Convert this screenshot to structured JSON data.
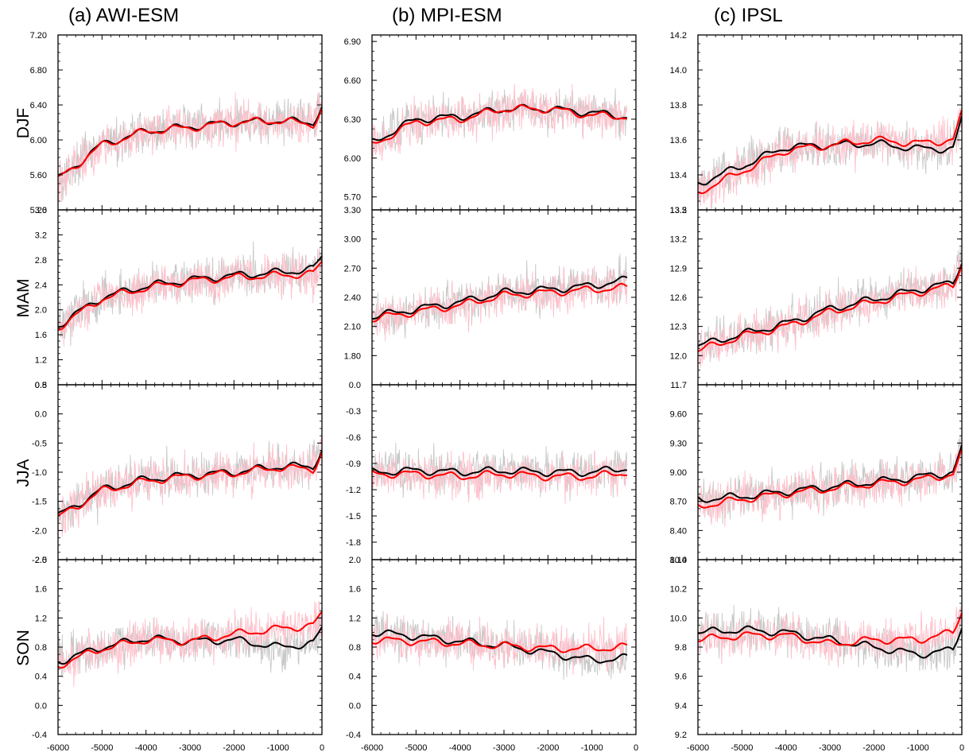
{
  "figure": {
    "column_titles": [
      "(a) AWI-ESM",
      "(b) MPI-ESM",
      "(c) IPSL"
    ],
    "row_labels": [
      "DJF",
      "MAM",
      "JJA",
      "SON"
    ],
    "colors": {
      "annual_gray": "#c8c8c8",
      "annual_pink": "#ffc0cb",
      "smoothed_black": "#000000",
      "smoothed_red": "#ff0000"
    }
  },
  "chart_data": [
    {
      "type": "line",
      "column": "(a) AWI-ESM",
      "row": "DJF",
      "xlim": [
        -6000,
        0
      ],
      "ylim": [
        5.2,
        7.2
      ],
      "y_ticks": [
        "5.20",
        "5.60",
        "6.00",
        "6.40",
        "6.80",
        "7.20"
      ],
      "x_ticks": [],
      "x": [
        -6000,
        -5000,
        -4000,
        -3000,
        -2000,
        -1000,
        -200,
        0
      ],
      "series": [
        {
          "values": [
            5.55,
            5.95,
            6.1,
            6.15,
            6.2,
            6.22,
            6.2,
            6.38
          ]
        },
        {
          "values": [
            5.55,
            5.94,
            6.1,
            6.14,
            6.2,
            6.22,
            6.18,
            6.35
          ]
        }
      ]
    },
    {
      "type": "line",
      "column": "(b) MPI-ESM",
      "row": "DJF",
      "xlim": [
        -6000,
        0
      ],
      "ylim": [
        5.6,
        6.95
      ],
      "y_ticks": [
        "5.70",
        "6.00",
        "6.30",
        "6.60",
        "6.90"
      ],
      "x_ticks": [],
      "x": [
        -6000,
        -5000,
        -4000,
        -3000,
        -2000,
        -1000,
        -200
      ],
      "series": [
        {
          "values": [
            6.12,
            6.3,
            6.32,
            6.38,
            6.38,
            6.35,
            6.32
          ]
        },
        {
          "values": [
            6.1,
            6.28,
            6.3,
            6.38,
            6.38,
            6.33,
            6.32
          ]
        }
      ]
    },
    {
      "type": "line",
      "column": "(c) IPSL",
      "row": "DJF",
      "xlim": [
        -6000,
        0
      ],
      "ylim": [
        13.2,
        14.2
      ],
      "y_ticks": [
        "13.2",
        "13.4",
        "13.6",
        "13.8",
        "14.0",
        "14.2"
      ],
      "x_ticks": [],
      "x": [
        -6000,
        -5000,
        -4000,
        -3000,
        -2000,
        -1000,
        -200,
        0
      ],
      "series": [
        {
          "values": [
            13.35,
            13.45,
            13.56,
            13.57,
            13.58,
            13.55,
            13.55,
            13.72
          ]
        },
        {
          "values": [
            13.3,
            13.42,
            13.54,
            13.57,
            13.6,
            13.58,
            13.6,
            13.75
          ]
        }
      ]
    },
    {
      "type": "line",
      "column": "(a) AWI-ESM",
      "row": "MAM",
      "xlim": [
        -6000,
        0
      ],
      "ylim": [
        0.8,
        3.6
      ],
      "y_ticks": [
        "0.8",
        "1.2",
        "1.6",
        "2.0",
        "2.4",
        "2.8",
        "3.2",
        "3.6"
      ],
      "x_ticks": [],
      "x": [
        -6000,
        -5000,
        -4000,
        -3000,
        -2000,
        -1000,
        -200,
        0
      ],
      "series": [
        {
          "values": [
            1.75,
            2.2,
            2.38,
            2.48,
            2.55,
            2.6,
            2.65,
            2.85
          ]
        },
        {
          "values": [
            1.72,
            2.18,
            2.35,
            2.46,
            2.52,
            2.55,
            2.58,
            2.75
          ]
        }
      ]
    },
    {
      "type": "line",
      "column": "(b) MPI-ESM",
      "row": "MAM",
      "xlim": [
        -6000,
        0
      ],
      "ylim": [
        1.5,
        3.3
      ],
      "y_ticks": [
        "1.80",
        "2.10",
        "2.40",
        "2.70",
        "3.00",
        "3.30"
      ],
      "x_ticks": [],
      "x": [
        -6000,
        -5000,
        -4000,
        -3000,
        -2000,
        -1000,
        -200
      ],
      "series": [
        {
          "values": [
            2.2,
            2.28,
            2.35,
            2.45,
            2.48,
            2.52,
            2.58
          ]
        },
        {
          "values": [
            2.18,
            2.25,
            2.32,
            2.42,
            2.45,
            2.48,
            2.5
          ]
        }
      ]
    },
    {
      "type": "line",
      "column": "(c) IPSL",
      "row": "MAM",
      "xlim": [
        -6000,
        0
      ],
      "ylim": [
        11.7,
        13.5
      ],
      "y_ticks": [
        "11.7",
        "12.0",
        "12.3",
        "12.6",
        "12.9",
        "13.2",
        "13.5"
      ],
      "x_ticks": [],
      "x": [
        -6000,
        -5000,
        -4000,
        -3000,
        -2000,
        -1000,
        -200,
        0
      ],
      "series": [
        {
          "values": [
            12.1,
            12.22,
            12.33,
            12.48,
            12.58,
            12.68,
            12.75,
            12.98
          ]
        },
        {
          "values": [
            12.05,
            12.2,
            12.3,
            12.45,
            12.55,
            12.65,
            12.72,
            12.95
          ]
        }
      ]
    },
    {
      "type": "line",
      "column": "(a) AWI-ESM",
      "row": "JJA",
      "xlim": [
        -6000,
        0
      ],
      "ylim": [
        -2.5,
        0.5
      ],
      "y_ticks": [
        "-2.5",
        "-2.0",
        "-1.5",
        "-1.0",
        "-0.5",
        "0.0",
        "0.5"
      ],
      "x_ticks": [],
      "x": [
        -6000,
        -5000,
        -4000,
        -3000,
        -2000,
        -1000,
        -200,
        0
      ],
      "series": [
        {
          "values": [
            -1.75,
            -1.3,
            -1.12,
            -1.05,
            -1.0,
            -0.9,
            -0.9,
            -0.6
          ]
        },
        {
          "values": [
            -1.78,
            -1.32,
            -1.15,
            -1.07,
            -1.02,
            -0.92,
            -0.95,
            -0.65
          ]
        }
      ]
    },
    {
      "type": "line",
      "column": "(b) MPI-ESM",
      "row": "JJA",
      "xlim": [
        -6000,
        0
      ],
      "ylim": [
        -2.0,
        0.0
      ],
      "y_ticks": [
        "-1.8",
        "-1.5",
        "-1.2",
        "-0.9",
        "-0.6",
        "-0.3",
        "0.0"
      ],
      "x_ticks": [],
      "x": [
        -6000,
        -5000,
        -4000,
        -3000,
        -2000,
        -1000,
        -200
      ],
      "series": [
        {
          "values": [
            -1.0,
            -0.98,
            -1.0,
            -0.98,
            -1.0,
            -1.0,
            -0.95
          ]
        },
        {
          "values": [
            -1.02,
            -1.02,
            -1.05,
            -1.02,
            -1.05,
            -1.05,
            -1.0
          ]
        }
      ]
    },
    {
      "type": "line",
      "column": "(c) IPSL",
      "row": "JJA",
      "xlim": [
        -6000,
        0
      ],
      "ylim": [
        8.1,
        9.9
      ],
      "y_ticks": [
        "8.10",
        "8.40",
        "8.70",
        "9.00",
        "9.30",
        "9.60"
      ],
      "x_ticks": [],
      "x": [
        -6000,
        -5000,
        -4000,
        -3000,
        -2000,
        -1000,
        -200,
        0
      ],
      "series": [
        {
          "values": [
            8.72,
            8.75,
            8.8,
            8.85,
            8.9,
            8.95,
            9.0,
            9.25
          ]
        },
        {
          "values": [
            8.65,
            8.72,
            8.78,
            8.83,
            8.88,
            8.92,
            8.98,
            9.2
          ]
        }
      ]
    },
    {
      "type": "line",
      "column": "(a) AWI-ESM",
      "row": "SON",
      "xlim": [
        -6000,
        0
      ],
      "ylim": [
        -0.4,
        2.0
      ],
      "y_ticks": [
        "-0.4",
        "0.0",
        "0.4",
        "0.8",
        "1.2",
        "1.6",
        "2.0"
      ],
      "x_ticks": [
        "-6000",
        "-5000",
        "-4000",
        "-3000",
        "-2000",
        "-1000",
        "0"
      ],
      "x": [
        -6000,
        -5000,
        -4000,
        -3000,
        -2000,
        -1000,
        -200,
        0
      ],
      "series": [
        {
          "values": [
            0.6,
            0.8,
            0.92,
            0.88,
            0.9,
            0.8,
            0.85,
            1.05
          ]
        },
        {
          "values": [
            0.55,
            0.78,
            0.9,
            0.88,
            0.98,
            1.05,
            1.1,
            1.25
          ]
        }
      ]
    },
    {
      "type": "line",
      "column": "(b) MPI-ESM",
      "row": "SON",
      "xlim": [
        -6000,
        0
      ],
      "ylim": [
        -0.4,
        2.0
      ],
      "y_ticks": [
        "-0.4",
        "0.0",
        "0.4",
        "0.8",
        "1.2",
        "1.6",
        "2.0"
      ],
      "x_ticks": [
        "-6000",
        "-5000",
        "-4000",
        "-3000",
        "-2000",
        "-1000",
        "0"
      ],
      "x": [
        -6000,
        -5000,
        -4000,
        -3000,
        -2000,
        -1000,
        -200
      ],
      "series": [
        {
          "values": [
            1.0,
            0.95,
            0.88,
            0.82,
            0.72,
            0.62,
            0.65
          ]
        },
        {
          "values": [
            0.9,
            0.88,
            0.85,
            0.82,
            0.78,
            0.78,
            0.8
          ]
        }
      ]
    },
    {
      "type": "line",
      "column": "(c) IPSL",
      "row": "SON",
      "xlim": [
        -6000,
        0
      ],
      "ylim": [
        9.2,
        10.4
      ],
      "y_ticks": [
        "9.2",
        "9.4",
        "9.6",
        "9.8",
        "10.0",
        "10.2",
        "10.4"
      ],
      "x_ticks": [
        "-6000",
        "-5000",
        "-4000",
        "-3000",
        "-2000",
        "-1000",
        "0"
      ],
      "x": [
        -6000,
        -5000,
        -4000,
        -3000,
        -2000,
        -1000,
        -200,
        0
      ],
      "series": [
        {
          "values": [
            9.9,
            9.92,
            9.9,
            9.85,
            9.8,
            9.75,
            9.78,
            9.95
          ]
        },
        {
          "values": [
            9.85,
            9.88,
            9.88,
            9.82,
            9.85,
            9.85,
            9.9,
            10.05
          ]
        }
      ]
    }
  ]
}
